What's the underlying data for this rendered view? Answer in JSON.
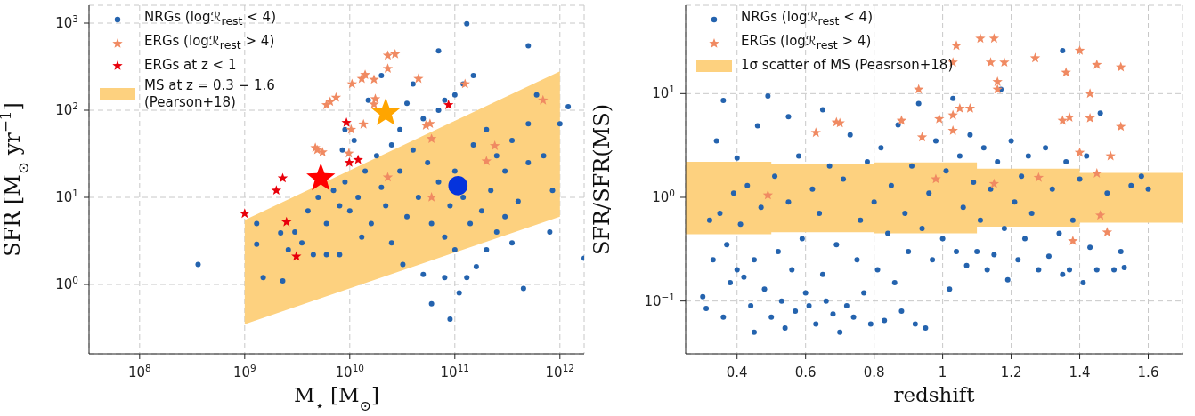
{
  "chart_data": [
    {
      "type": "scatter",
      "xlabel": "M$_{⋆}$ [M$_{⊙}$]",
      "ylabel": "SFR [M$_{⊙}$ yr$^{−1}$]",
      "log": "xy",
      "grid": true,
      "legend": "top left",
      "xlim": [
        33000000.0,
        1700000000000.0
      ],
      "ylim": [
        0.16,
        1600
      ],
      "xticks": [
        {
          "value": 100000000.0,
          "label": "10$^{8}$"
        },
        {
          "value": 1000000000.0,
          "label": "10$^{9}$"
        },
        {
          "value": 10000000000.0,
          "label": "10$^{10}$"
        },
        {
          "value": 100000000000.0,
          "label": "10$^{11}$"
        },
        {
          "value": 1000000000000.0,
          "label": "10$^{12}$"
        }
      ],
      "yticks": [
        {
          "value": 1,
          "label": "10$^{0}$"
        },
        {
          "value": 10,
          "label": "10$^{1}$"
        },
        {
          "value": 100,
          "label": "10$^{2}$"
        },
        {
          "value": 1000,
          "label": "10$^{3}$"
        }
      ],
      "series": [
        {
          "name": "NRGs (logℛ$_{rest}$ < 4)",
          "color": "#2463ae",
          "marker": "circle",
          "x": [
            360000000.0,
            1300000000.0,
            1300000000.0,
            1500000000.0,
            2200000000.0,
            2300000000.0,
            2600000000.0,
            3000000000.0,
            3500000000.0,
            4000000000.0,
            4500000000.0,
            5000000000.0,
            6000000000.0,
            6000000000.0,
            7000000000.0,
            8000000000.0,
            8000000000.0,
            8500000000.0,
            9000000000.0,
            9000000000.0,
            10000000000.0,
            11000000000.0,
            12000000000.0,
            13000000000.0,
            14000000000.0,
            15000000000.0,
            16000000000.0,
            18000000000.0,
            20000000000.0,
            20000000000.0,
            22000000000.0,
            25000000000.0,
            25000000000.0,
            30000000000.0,
            30000000000.0,
            32000000000.0,
            35000000000.0,
            35000000000.0,
            40000000000.0,
            40000000000.0,
            45000000000.0,
            50000000000.0,
            50000000000.0,
            55000000000.0,
            60000000000.0,
            60000000000.0,
            70000000000.0,
            70000000000.0,
            70000000000.0,
            80000000000.0,
            80000000000.0,
            80000000000.0,
            90000000000.0,
            90000000000.0,
            100000000000.0,
            100000000000.0,
            100000000000.0,
            110000000000.0,
            120000000000.0,
            120000000000.0,
            130000000000.0,
            140000000000.0,
            150000000000.0,
            150000000000.0,
            160000000000.0,
            180000000000.0,
            200000000000.0,
            200000000000.0,
            220000000000.0,
            250000000000.0,
            250000000000.0,
            300000000000.0,
            300000000000.0,
            350000000000.0,
            350000000000.0,
            400000000000.0,
            450000000000.0,
            500000000000.0,
            500000000000.0,
            500000000000.0,
            600000000000.0,
            700000000000.0,
            800000000000.0,
            850000000000.0,
            1000000000000.0,
            1200000000000.0,
            1700000000000.0,
            130000000000.0
          ],
          "values": [
            1.7,
            2.9,
            5,
            1.2,
            3.9,
            1.1,
            2.5,
            4,
            3,
            7,
            2.2,
            10,
            2.2,
            5,
            12,
            2.2,
            8,
            35,
            60,
            15,
            7,
            45,
            10,
            3.5,
            20,
            130,
            5,
            30,
            13,
            250,
            8,
            40,
            3,
            20,
            60,
            1.7,
            120,
            6,
            35,
            200,
            10,
            1.3,
            80,
            25,
            0.6,
            5,
            100,
            15,
            480,
            1.2,
            3.5,
            130,
            0.4,
            8,
            150,
            20,
            2.5,
            0.8,
            200,
            10,
            1.2,
            5,
            40,
            250,
            1.6,
            7,
            2.5,
            60,
            12,
            4,
            30,
            6,
            20,
            3,
            45,
            9,
            0.9,
            70,
            25,
            550,
            150,
            30,
            4,
            12,
            70,
            110,
            2,
            980
          ]
        },
        {
          "name": "ERGs (logℛ$_{rest}$ > 4)",
          "color": "#f08a62",
          "marker": "star",
          "x": [
            23000000000.0,
            27000000000.0,
            23000000000.0,
            45000000000.0,
            125000000000.0,
            14000000000.0,
            13000000000.0,
            17000000000.0,
            10500000000.0,
            7400000000.0,
            6500000000.0,
            6000000000.0,
            17500000000.0,
            17000000000.0,
            10300000000.0,
            13500000000.0,
            4700000000.0,
            4900000000.0,
            5500000000.0,
            9800000000.0,
            53000000000.0,
            58000000000.0,
            60000000000.0,
            240000000000.0,
            200000000000.0,
            23000000000.0,
            60000000000.0,
            690000000000.0
          ],
          "values": [
            425,
            440,
            300,
            230,
            200,
            255,
            230,
            225,
            200,
            140,
            125,
            115,
            135,
            117,
            60,
            69,
            37,
            35,
            33,
            32,
            67,
            70,
            47,
            39,
            26,
            17,
            10,
            130
          ]
        },
        {
          "name": "ERGs at z < 1",
          "color": "#e8000b",
          "marker": "star",
          "x": [
            9300000000.0,
            87000000000.0,
            12000000000.0,
            9900000000.0,
            2300000000.0,
            2000000000.0,
            1000000000.0,
            2500000000.0,
            3100000000.0
          ],
          "values": [
            72,
            115,
            27,
            25,
            16.6,
            12,
            6.5,
            5.2,
            2.1
          ]
        },
        {
          "type": "area",
          "name": "MS at z = 0.3 − 1.6\n(Pearson+18)",
          "color": "#fdd17f",
          "x": [
            1000000000.0,
            1000000000000.0
          ],
          "values": [
            null,
            null
          ],
          "lower": [
            0.35,
            6
          ],
          "upper": [
            5.5,
            280
          ]
        },
        {
          "color": "#ff0000",
          "marker": "star",
          "x": [
            5300000000.0
          ],
          "values": [
            16.6
          ]
        },
        {
          "color": "#ffa500",
          "marker": "star",
          "x": [
            22000000000.0
          ],
          "values": [
            93
          ]
        },
        {
          "color": "#0433dd",
          "marker": "circle",
          "x": [
            107000000000.0
          ],
          "values": [
            13.6
          ]
        }
      ]
    },
    {
      "type": "scatter",
      "xlabel": "redshift",
      "ylabel": "SFR/SFR(MS)",
      "log": "y",
      "grid": true,
      "legend": "top left",
      "xlim": [
        0.25,
        1.7
      ],
      "ylim": [
        0.031,
        71
      ],
      "xticks": [
        0.4,
        0.6,
        0.8,
        1.0,
        1.2,
        1.4,
        1.6
      ],
      "yticks": [
        {
          "value": 0.1,
          "label": "10$^{−1}$"
        },
        {
          "value": 1,
          "label": "10$^{0}$"
        },
        {
          "value": 10,
          "label": "10$^{1}$"
        }
      ],
      "series": [
        {
          "name": "NRGs (logℛ$_{rest}$ < 4)",
          "color": "#2463ae",
          "marker": "circle",
          "x": [
            0.3,
            0.31,
            0.32,
            0.33,
            0.34,
            0.35,
            0.36,
            0.36,
            0.37,
            0.38,
            0.39,
            0.4,
            0.4,
            0.41,
            0.42,
            0.43,
            0.44,
            0.45,
            0.45,
            0.46,
            0.47,
            0.48,
            0.49,
            0.5,
            0.51,
            0.52,
            0.53,
            0.54,
            0.55,
            0.55,
            0.56,
            0.57,
            0.58,
            0.59,
            0.6,
            0.61,
            0.62,
            0.63,
            0.64,
            0.65,
            0.65,
            0.66,
            0.67,
            0.68,
            0.69,
            0.7,
            0.71,
            0.72,
            0.73,
            0.74,
            0.75,
            0.76,
            0.77,
            0.78,
            0.79,
            0.8,
            0.81,
            0.82,
            0.83,
            0.84,
            0.85,
            0.86,
            0.87,
            0.88,
            0.89,
            0.9,
            0.91,
            0.92,
            0.93,
            0.94,
            0.95,
            0.96,
            0.97,
            0.98,
            1.0,
            1.01,
            1.02,
            1.03,
            1.04,
            1.05,
            1.06,
            1.07,
            1.08,
            1.09,
            1.1,
            1.11,
            1.12,
            1.13,
            1.14,
            1.15,
            1.16,
            1.17,
            1.18,
            1.19,
            1.2,
            1.21,
            1.22,
            1.23,
            1.24,
            1.25,
            1.26,
            1.28,
            1.3,
            1.31,
            1.32,
            1.34,
            1.35,
            1.35,
            1.36,
            1.37,
            1.38,
            1.4,
            1.41,
            1.42,
            1.43,
            1.45,
            1.46,
            1.48,
            1.5,
            1.52,
            1.53,
            1.55,
            1.58,
            1.6
          ],
          "values": [
            0.11,
            0.085,
            0.6,
            0.25,
            3.5,
            0.7,
            0.07,
            8.6,
            0.35,
            0.15,
            1.1,
            0.2,
            2.4,
            0.55,
            0.17,
            1.3,
            0.09,
            0.05,
            0.25,
            4.9,
            0.8,
            0.13,
            9.5,
            0.07,
            1.6,
            0.3,
            0.1,
            0.055,
            6,
            0.9,
            0.2,
            0.08,
            2.5,
            0.4,
            0.12,
            0.09,
            1.2,
            0.06,
            0.7,
            7,
            0.18,
            0.1,
            2,
            0.075,
            0.35,
            0.05,
            1.5,
            0.09,
            4,
            0.07,
            0.25,
            0.6,
            0.12,
            2.2,
            0.06,
            0.9,
            0.2,
            3,
            0.065,
            0.45,
            1.3,
            0.15,
            5,
            0.08,
            0.7,
            0.3,
            2,
            0.06,
            8,
            0.5,
            0.055,
            1.1,
            0.25,
            3.5,
            0.4,
            1.8,
            0.13,
            9,
            0.3,
            2.5,
            0.8,
            0.22,
            4,
            1.4,
            0.3,
            0.6,
            3,
            0.2,
            1.2,
            0.28,
            2.2,
            11,
            0.5,
            0.16,
            3.5,
            0.9,
            0.25,
            1.6,
            0.4,
            2.5,
            0.7,
            0.2,
            3,
            0.27,
            1.2,
            0.45,
            0.18,
            26,
            2.2,
            0.2,
            0.6,
            1.5,
            0.15,
            2.5,
            0.33,
            0.2,
            6.5,
            1.1,
            0.2,
            0.3,
            0.21,
            1.3,
            1.6,
            1.2
          ]
        },
        {
          "name": "ERGs (logℛ$_{rest}$ > 4)",
          "color": "#f08a62",
          "marker": "star",
          "x": [
            1.04,
            1.11,
            1.15,
            1.03,
            1.14,
            1.18,
            1.27,
            1.4,
            1.36,
            1.45,
            1.52,
            1.43,
            1.16,
            1.16,
            0.93,
            1.05,
            1.08,
            1.03,
            1.03,
            0.99,
            0.88,
            0.69,
            0.7,
            0.63,
            0.94,
            1.35,
            1.37,
            1.43,
            1.52,
            1.4,
            1.49,
            0.98,
            1.15,
            1.28,
            1.45,
            0.49,
            1.46,
            1.48,
            1.38
          ],
          "values": [
            29,
            34,
            34,
            20,
            20,
            20,
            22,
            26,
            16,
            19,
            18,
            10,
            13,
            11,
            11,
            7.2,
            7.2,
            6.2,
            4.4,
            5.7,
            5.5,
            5.3,
            5.2,
            4.2,
            3.8,
            5.5,
            5.9,
            5.8,
            4.8,
            2.7,
            2.5,
            1.5,
            1.35,
            1.55,
            1.7,
            1.05,
            0.67,
            0.46,
            0.38
          ]
        },
        {
          "type": "area",
          "name": "1σ scatter of MS (Peasrson+18)",
          "color": "#fdd17f",
          "x": [
            0.25,
            0.5,
            0.5,
            0.8,
            0.8,
            1.1,
            1.1,
            1.4,
            1.4,
            1.7
          ],
          "values": [
            null,
            null,
            null,
            null,
            null,
            null,
            null,
            null,
            null,
            null
          ],
          "lower": [
            0.44,
            0.44,
            0.46,
            0.46,
            0.45,
            0.45,
            0.52,
            0.52,
            0.57,
            0.57
          ],
          "upper": [
            2.2,
            2.2,
            2.1,
            2.1,
            2.17,
            2.17,
            1.89,
            1.89,
            1.72,
            1.72
          ]
        }
      ]
    }
  ]
}
